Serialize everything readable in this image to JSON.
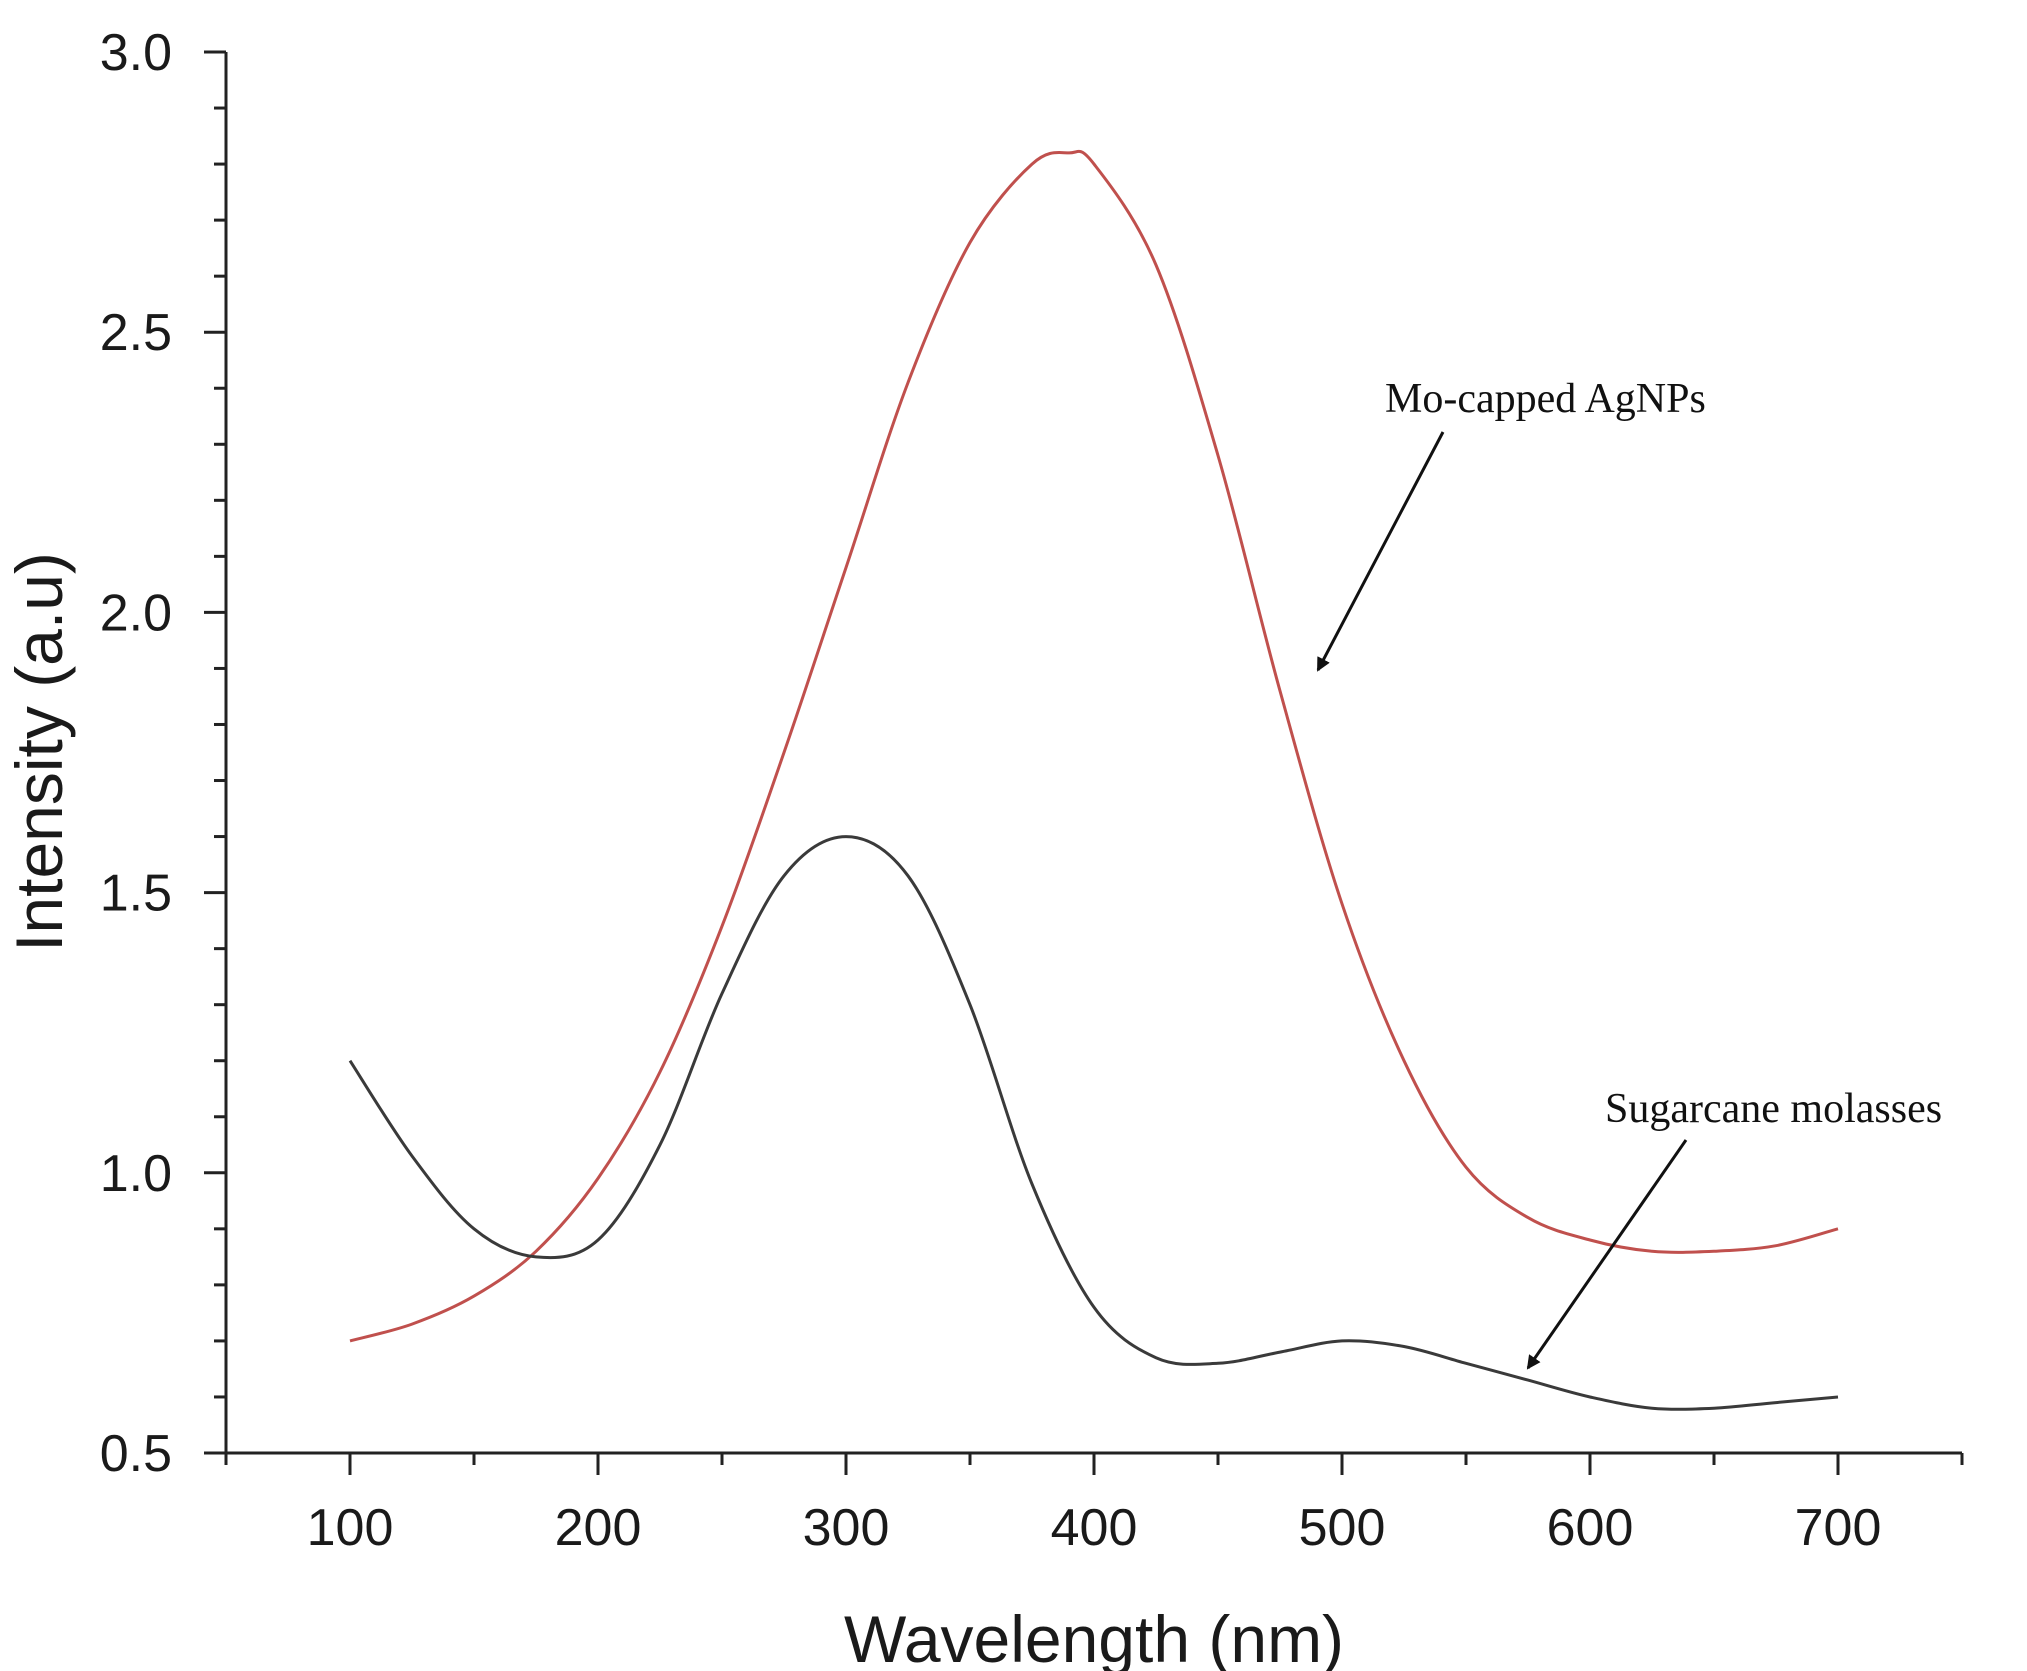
{
  "chart_data": {
    "type": "line",
    "title": "",
    "xlabel": "Wavelength (nm)",
    "ylabel": "Intensity (a.u)",
    "xlim": [
      50,
      750
    ],
    "ylim": [
      0.5,
      3.0
    ],
    "xticks": [
      100,
      200,
      300,
      400,
      500,
      600,
      700
    ],
    "xtick_labels": [
      "100",
      "200",
      "300",
      "400",
      "500",
      "600",
      "700"
    ],
    "yticks": [
      0.5,
      1.0,
      1.5,
      2.0,
      2.5,
      3.0
    ],
    "ytick_labels": [
      "0.5",
      "1.0",
      "1.5",
      "2.0",
      "2.5",
      "3.0"
    ],
    "grid": false,
    "series": [
      {
        "name": "Mo-capped AgNPs",
        "color": "#c0504d",
        "x": [
          100,
          125,
          150,
          175,
          200,
          225,
          250,
          275,
          300,
          325,
          350,
          375,
          390,
          400,
          425,
          450,
          475,
          500,
          525,
          550,
          575,
          600,
          625,
          650,
          675,
          700
        ],
        "y": [
          0.7,
          0.73,
          0.78,
          0.86,
          0.99,
          1.18,
          1.44,
          1.75,
          2.08,
          2.41,
          2.66,
          2.8,
          2.82,
          2.8,
          2.62,
          2.28,
          1.86,
          1.48,
          1.2,
          1.01,
          0.92,
          0.88,
          0.86,
          0.86,
          0.87,
          0.9
        ]
      },
      {
        "name": "Sugarcane molasses",
        "color": "#3a3a3a",
        "x": [
          100,
          125,
          150,
          175,
          200,
          225,
          250,
          275,
          300,
          325,
          350,
          375,
          400,
          425,
          450,
          475,
          500,
          525,
          550,
          575,
          600,
          625,
          650,
          675,
          700
        ],
        "y": [
          1.2,
          1.03,
          0.9,
          0.85,
          0.88,
          1.05,
          1.32,
          1.53,
          1.6,
          1.53,
          1.3,
          0.98,
          0.76,
          0.67,
          0.66,
          0.68,
          0.7,
          0.69,
          0.66,
          0.63,
          0.6,
          0.58,
          0.58,
          0.59,
          0.6
        ]
      }
    ],
    "annotations": [
      {
        "text": "Mo-capped AgNPs",
        "points_to_series": "Mo-capped AgNPs",
        "arrow_to": [
          490,
          1.9
        ]
      },
      {
        "text": "Sugarcane molasses",
        "points_to_series": "Sugarcane molasses",
        "arrow_to": [
          570,
          0.66
        ]
      }
    ]
  }
}
